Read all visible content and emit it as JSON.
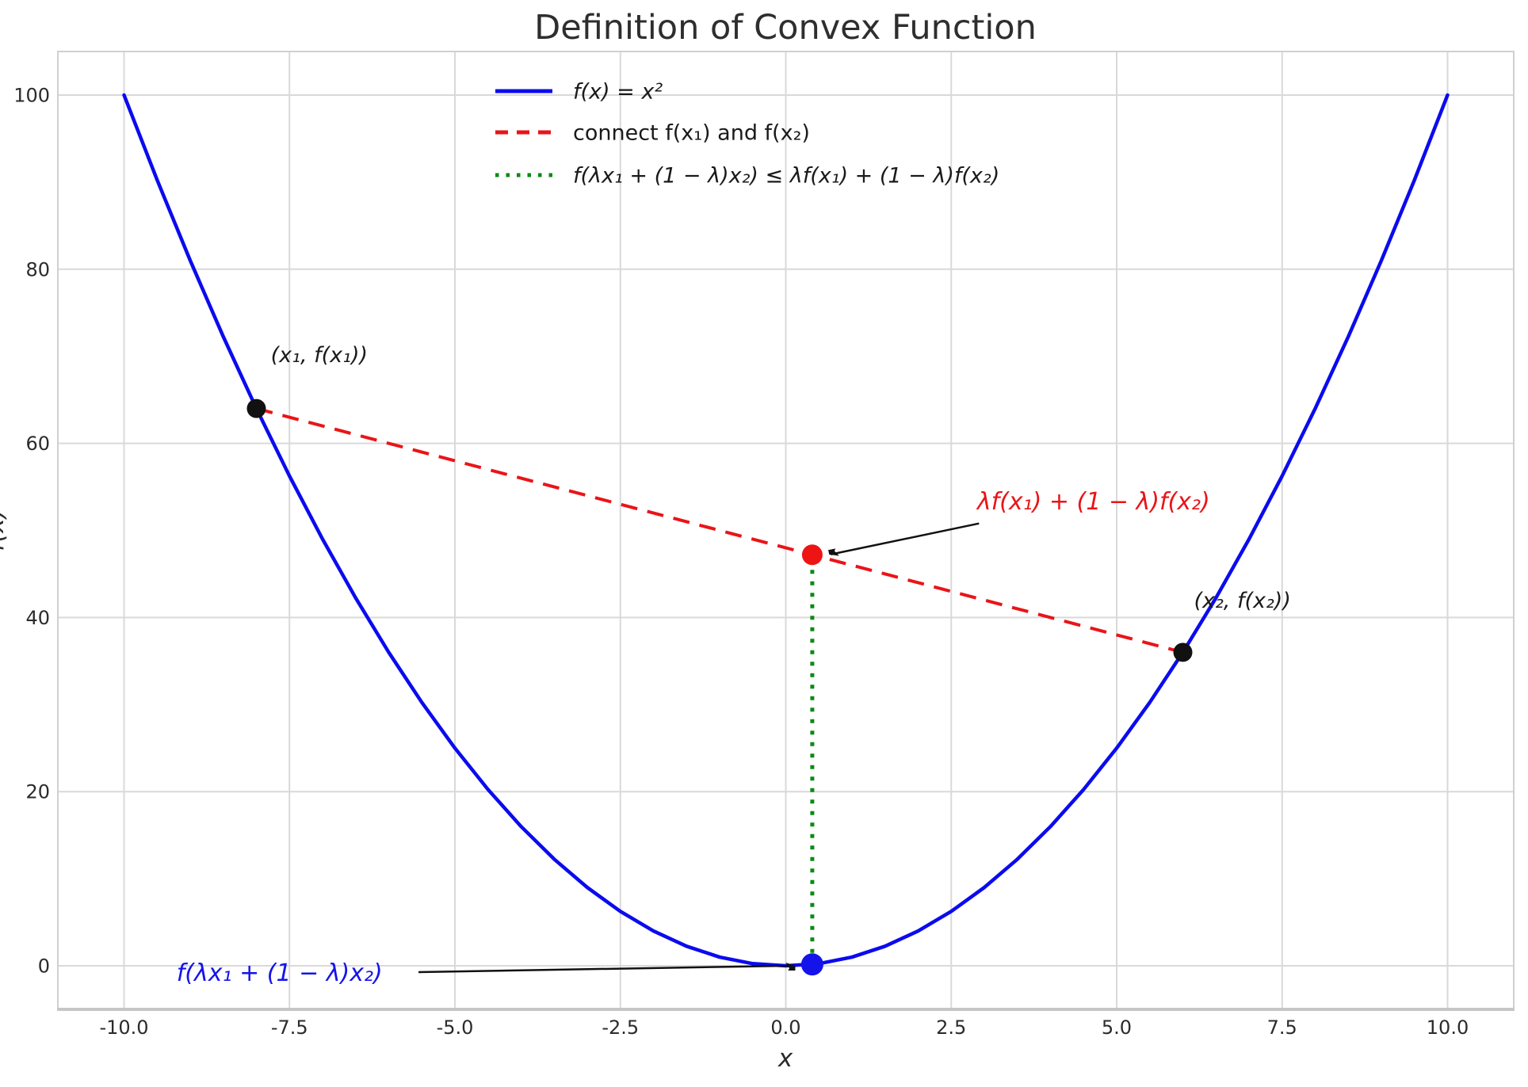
{
  "chart_data": {
    "type": "line",
    "title": "Definition of Convex Function",
    "xlabel": "x",
    "ylabel": "f(x)",
    "xlim": [
      -11,
      11
    ],
    "ylim": [
      -5,
      105
    ],
    "grid": true,
    "x_ticks": {
      "values": [
        -10.0,
        -7.5,
        -5.0,
        -2.5,
        0.0,
        2.5,
        5.0,
        7.5,
        10.0
      ],
      "labels": [
        "-10.0",
        "-7.5",
        "-5.0",
        "-2.5",
        "0.0",
        "2.5",
        "5.0",
        "7.5",
        "10.0"
      ]
    },
    "y_ticks": {
      "values": [
        0,
        20,
        40,
        60,
        80,
        100
      ],
      "labels": [
        "0",
        "20",
        "40",
        "60",
        "80",
        "100"
      ]
    },
    "series": [
      {
        "name": "curve-parabola",
        "label": "f(x) = x²",
        "color": "#0b0bee",
        "width": 4.5,
        "dash": "",
        "italic": true,
        "x": [
          -10,
          -9.5,
          -9,
          -8.5,
          -8,
          -7.5,
          -7,
          -6.5,
          -6,
          -5.5,
          -5,
          -4.5,
          -4,
          -3.5,
          -3,
          -2.5,
          -2,
          -1.5,
          -1,
          -0.5,
          0,
          0.5,
          1,
          1.5,
          2,
          2.5,
          3,
          3.5,
          4,
          4.5,
          5,
          5.5,
          6,
          6.5,
          7,
          7.5,
          8,
          8.5,
          9,
          9.5,
          10
        ],
        "y": [
          100,
          90.25,
          81,
          72.25,
          64,
          56.25,
          49,
          42.25,
          36,
          30.25,
          25,
          20.25,
          16,
          12.25,
          9,
          6.25,
          4,
          2.25,
          1,
          0.25,
          0,
          0.25,
          1,
          2.25,
          4,
          6.25,
          9,
          12.25,
          16,
          20.25,
          25,
          30.25,
          36,
          42.25,
          49,
          56.25,
          64,
          72.25,
          81,
          90.25,
          100
        ]
      },
      {
        "name": "chord-line",
        "label": "connect f(x₁) and f(x₂)",
        "color": "#ea1418",
        "width": 4,
        "dash": "21 13",
        "italic": false,
        "x": [
          -8,
          6
        ],
        "y": [
          64,
          36
        ]
      },
      {
        "name": "convexity-gap-line",
        "label": "f(λx₁ + (1 − λ)x₂) ≤ λf(x₁) + (1 − λ)f(x₂)",
        "color": "#0c8a14",
        "width": 5,
        "dash": "5 9.5",
        "italic": true,
        "x": [
          0.4,
          0.4
        ],
        "y": [
          0.16,
          47.2
        ]
      }
    ],
    "points": [
      {
        "name": "point-x1",
        "x": -8,
        "y": 64,
        "color": "#111111",
        "r": 12
      },
      {
        "name": "point-x2",
        "x": 6,
        "y": 36,
        "color": "#111111",
        "r": 12
      },
      {
        "name": "point-chord-value",
        "x": 0.4,
        "y": 47.2,
        "color": "#ee1414",
        "r": 13
      },
      {
        "name": "point-curve-value",
        "x": 0.4,
        "y": 0.16,
        "color": "#1414ea",
        "r": 14
      }
    ],
    "annotations": [
      {
        "name": "label-x1",
        "text": "(x₁, f(x₁))",
        "color": "#1a1a1a",
        "x": -7.05,
        "y": 70.2,
        "size": 27,
        "italic": true
      },
      {
        "name": "label-x2",
        "text": "(x₂, f(x₂))",
        "color": "#1a1a1a",
        "x": 6.9,
        "y": 42.0,
        "size": 27,
        "italic": true
      },
      {
        "name": "label-chord-value",
        "text": "λf(x₁) + (1 − λ)f(x₂)",
        "color": "#ea1418",
        "x": 4.65,
        "y": 53.4,
        "size": 30,
        "italic": true,
        "arrow": {
          "from": [
            2.92,
            50.8
          ],
          "to": [
            0.68,
            47.25
          ]
        }
      },
      {
        "name": "label-curve-value",
        "text": "f(λx₁ + (1 − λ)x₂)",
        "color": "#1414ea",
        "x": -7.65,
        "y": -0.75,
        "size": 30,
        "italic": true,
        "arrow": {
          "from": [
            -5.55,
            -0.72
          ],
          "to": [
            0.12,
            0.02
          ]
        }
      }
    ],
    "legend": {
      "position": "upper-center-left"
    },
    "style": {
      "grid_color": "#d9d9d9",
      "spine_color": "#d0d0d0",
      "bottom_spine_color": "#c6c6c6",
      "tick_color": "#2b2b2b",
      "title_color": "#2e2e2e",
      "arrow_color": "#111111",
      "legend_text_color": "#1a1a1a"
    }
  }
}
